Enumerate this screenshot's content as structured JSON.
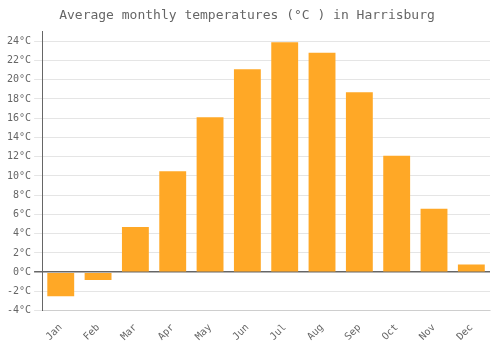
{
  "chart_data": {
    "type": "bar",
    "title": "Average monthly temperatures (°C ) in Harrisburg",
    "categories": [
      "Jan",
      "Feb",
      "Mar",
      "Apr",
      "May",
      "Jun",
      "Jul",
      "Aug",
      "Sep",
      "Oct",
      "Nov",
      "Dec"
    ],
    "values": [
      -2.5,
      -0.8,
      4.7,
      10.5,
      16.1,
      21.1,
      23.9,
      22.8,
      18.7,
      12.1,
      6.6,
      0.8
    ],
    "color": "#FFA826",
    "ylim": [
      -4,
      25
    ],
    "yticks": [
      {
        "value": -4,
        "label": "-4°C"
      },
      {
        "value": -2,
        "label": "-2°C"
      },
      {
        "value": 0,
        "label": "0°C"
      },
      {
        "value": 2,
        "label": "2°C"
      },
      {
        "value": 4,
        "label": "4°C"
      },
      {
        "value": 6,
        "label": "6°C"
      },
      {
        "value": 8,
        "label": "8°C"
      },
      {
        "value": 10,
        "label": "10°C"
      },
      {
        "value": 12,
        "label": "12°C"
      },
      {
        "value": 14,
        "label": "14°C"
      },
      {
        "value": 16,
        "label": "16°C"
      },
      {
        "value": 18,
        "label": "18°C"
      },
      {
        "value": 20,
        "label": "20°C"
      },
      {
        "value": 22,
        "label": "22°C"
      },
      {
        "value": 24,
        "label": "24°C"
      }
    ],
    "grid": true
  }
}
